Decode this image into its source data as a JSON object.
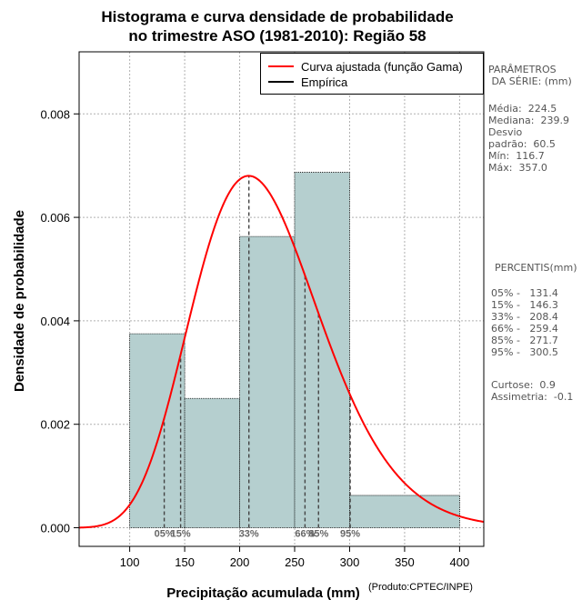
{
  "chart_data": {
    "type": "bar",
    "title_line1": "Histograma e curva densidade de probabilidade",
    "title_line2": "no trimestre ASO (1981-2010): Região 58",
    "xlabel": "Precipitação acumulada (mm)",
    "ylabel": "Densidade de probabilidade",
    "xlim": [
      54,
      422
    ],
    "ylim": [
      -0.00036,
      0.0092
    ],
    "xticks": [
      100,
      150,
      200,
      250,
      300,
      350,
      400
    ],
    "yticks": [
      0,
      0.002,
      0.004,
      0.006,
      0.008
    ],
    "ytick_labels": [
      "0.000",
      "0.002",
      "0.004",
      "0.006",
      "0.008"
    ],
    "grid": true,
    "bin_edges": [
      100,
      150,
      200,
      250,
      300,
      400
    ],
    "densities": [
      0.00375,
      0.0025,
      0.00563,
      0.00687,
      0.000625
    ],
    "bar_color": "#b5cfcf",
    "curve_color": "#ff0000",
    "gamma_fit": {
      "mean": 224.5,
      "sd": 60.5
    },
    "percentile_markers": [
      {
        "label": "05%",
        "value": 131.4
      },
      {
        "label": "15%",
        "value": 146.3
      },
      {
        "label": "33%",
        "value": 208.4
      },
      {
        "label": "66%",
        "value": 259.4
      },
      {
        "label": "85%",
        "value": 271.7
      },
      {
        "label": "95%",
        "value": 300.5
      }
    ],
    "legend": [
      {
        "label": "Curva ajustada (função Gama)",
        "color": "#ff0000"
      },
      {
        "label": "Empírica",
        "color": "#000000"
      }
    ],
    "legend_position": "top-right"
  },
  "sidebar": {
    "params_title": "PARÂMETROS\n DA SÉRIE: (mm)",
    "params_body": "Média:  224.5\nMediana:  239.9\nDesvio\npadrão:  60.5\nMín:  116.7\nMáx:  357.0",
    "percentis_title": "PERCENTIS(mm)",
    "percentis_body": "05% -   131.4\n15% -   146.3\n33% -   208.4\n66% -   259.4\n85% -   271.7\n95% -   300.5",
    "stats_body": "Curtose:  0.9\nAssimetria:  -0.1"
  },
  "credit": "(Produto:CPTEC/INPE)"
}
